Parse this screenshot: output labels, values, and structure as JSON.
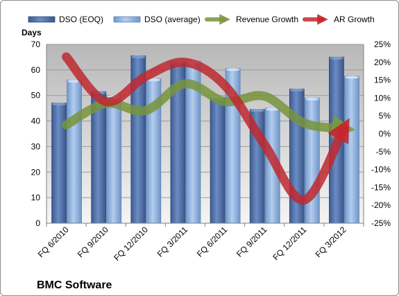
{
  "chart_data": {
    "type": "bar",
    "title": "BMC Software",
    "ylabel_left": "Days",
    "ylabel_right": "",
    "xlabel": "",
    "categories": [
      "FQ 6/2010",
      "FQ 9/2010",
      "FQ 12/2010",
      "FQ 3/2011",
      "FQ 6/2011",
      "FQ 9/2011",
      "FQ 12/2011",
      "FQ 3/2012"
    ],
    "ylim_left": [
      0,
      70
    ],
    "yticks_left": [
      "0",
      "10",
      "20",
      "30",
      "40",
      "50",
      "60",
      "70"
    ],
    "ylim_right": [
      -25,
      25
    ],
    "yticks_right": [
      "-25%",
      "-20%",
      "-15%",
      "-10%",
      "-5%",
      "0%",
      "5%",
      "10%",
      "15%",
      "20%",
      "25%"
    ],
    "grid": true,
    "legend_position": "top",
    "series": [
      {
        "name": "DSO (EOQ)",
        "kind": "bar",
        "axis": "left",
        "color": "#4f6fa8",
        "values": [
          47,
          51.5,
          65.5,
          63,
          49,
          44.5,
          52.5,
          65
        ]
      },
      {
        "name": "DSO (average)",
        "kind": "bar",
        "axis": "left",
        "color": "#8fb3df",
        "values": [
          56,
          50,
          56.5,
          63.5,
          60.5,
          45,
          49,
          57.5
        ]
      },
      {
        "name": "Revenue Growth",
        "kind": "line",
        "axis": "right",
        "color": "#77943c",
        "values": [
          2.5,
          8.5,
          6.5,
          14,
          9,
          10.5,
          3,
          1.5
        ]
      },
      {
        "name": "AR Growth",
        "kind": "line",
        "axis": "right",
        "color": "#c0282e",
        "values": [
          21.5,
          9,
          16,
          20,
          13.5,
          -3,
          -18.5,
          1.5
        ]
      }
    ]
  }
}
